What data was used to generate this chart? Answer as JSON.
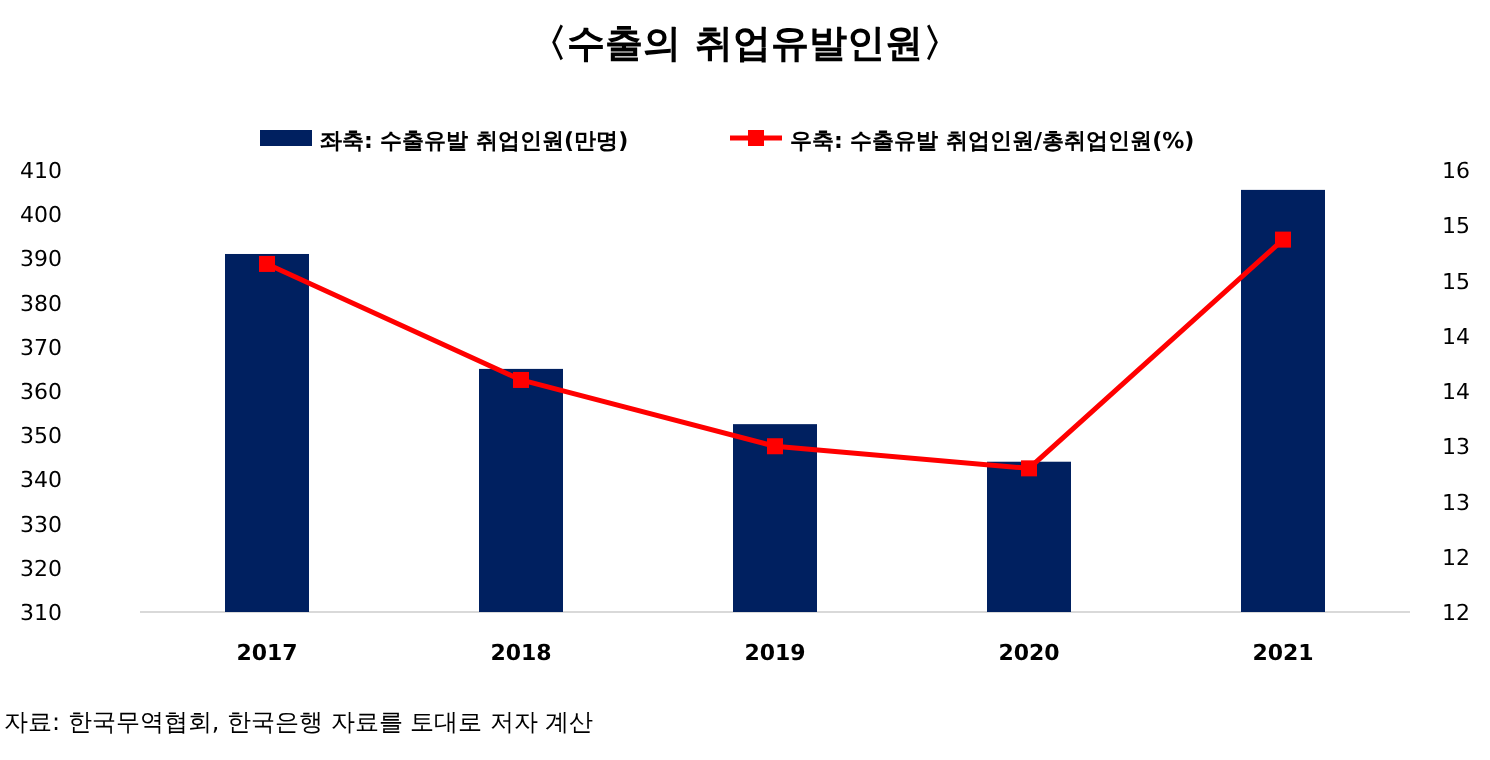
{
  "chart_data": {
    "type": "bar",
    "title": "〈수출의 취업유발인원〉",
    "categories": [
      "2017",
      "2018",
      "2019",
      "2020",
      "2021"
    ],
    "series": [
      {
        "name": "좌축: 수출유발 취업인원(만명)",
        "color": "#002060",
        "values": [
          391,
          365,
          352.5,
          344,
          405.5
        ]
      },
      {
        "name": "우축: 수출유발 취업인원/총취업인원(%)",
        "type": "line",
        "axis": "y2",
        "color": "#ff0000",
        "marker": "square",
        "values": [
          15.15,
          14.1,
          13.5,
          13.3,
          15.37
        ]
      }
    ],
    "ylim": [
      310,
      410
    ],
    "yticks": [
      310,
      320,
      330,
      340,
      350,
      360,
      370,
      380,
      390,
      400,
      410
    ],
    "y2lim": [
      12,
      16
    ],
    "y2ticks": [
      12,
      {
        "value": 12.5,
        "label": "12"
      },
      13,
      {
        "value": 13.5,
        "label": "13"
      },
      14,
      {
        "value": 14.5,
        "label": "14"
      },
      15,
      {
        "value": 15.5,
        "label": "15"
      },
      16
    ],
    "legend": "top",
    "annotations": [
      "자료: 한국무역협회, 한국은행 자료를 토대로 저자 계산"
    ]
  }
}
